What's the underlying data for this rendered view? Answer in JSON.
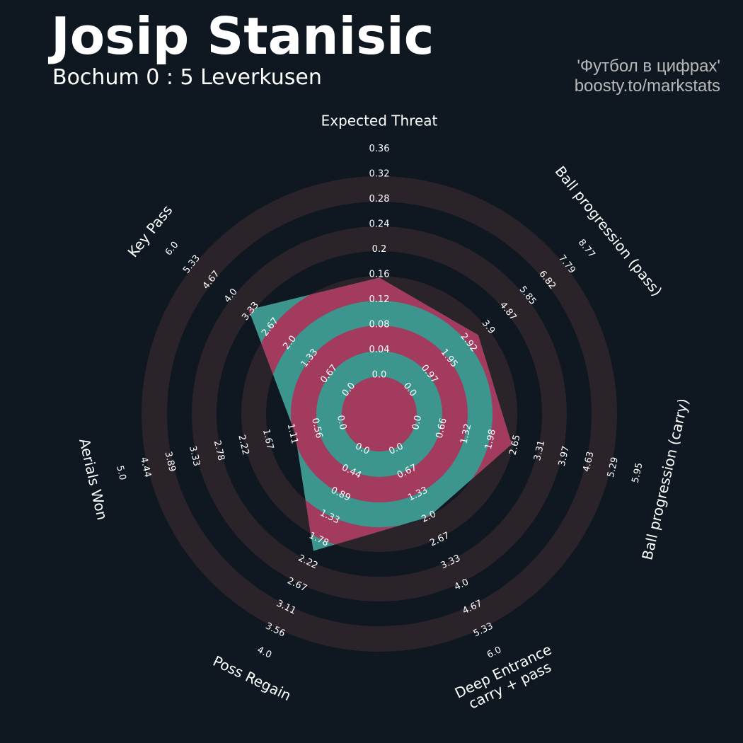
{
  "header": {
    "title": "Josip Stanisic",
    "subtitle": "Bochum 0 : 5 Leverkusen",
    "credit_line1": "'Футбол в цифрах'",
    "credit_line2": "boosty.to/markstats"
  },
  "colors": {
    "background": "#0f1820",
    "ring_band": "#2a2329",
    "player_area": "#a33b5e",
    "inner_area": "#3c968e",
    "text": "#ffffff",
    "credit_text": "#b8b8b8"
  },
  "chart_data": {
    "type": "radar",
    "title": "Josip Stanisic",
    "subtitle": "Bochum 0 : 5 Leverkusen",
    "axes": [
      {
        "name": "Expected Threat",
        "ticks": [
          "0.0",
          "0.04",
          "0.08",
          "0.12",
          "0.16",
          "0.2",
          "0.24",
          "0.28",
          "0.32",
          "0.36"
        ],
        "min": 0.0,
        "max": 0.36,
        "value": 0.155
      },
      {
        "name": "Ball progression (pass)",
        "ticks": [
          "0.0",
          "0.97",
          "1.95",
          "2.92",
          "3.9",
          "4.87",
          "5.85",
          "6.82",
          "7.79",
          "8.77"
        ],
        "min": 0.0,
        "max": 8.77,
        "value": 3.4
      },
      {
        "name": "Ball progression (carry)",
        "ticks": [
          "0.0",
          "0.66",
          "1.32",
          "1.98",
          "2.65",
          "3.31",
          "3.97",
          "4.63",
          "5.29",
          "5.95"
        ],
        "min": 0.0,
        "max": 5.95,
        "value": 2.55
      },
      {
        "name": "Deep Entrance\ncarry + pass",
        "ticks": [
          "0.0",
          "0.67",
          "1.33",
          "2.0",
          "2.67",
          "3.33",
          "4.0",
          "4.67",
          "5.33",
          "6.0"
        ],
        "min": 0.0,
        "max": 6.0,
        "value": 2.0
      },
      {
        "name": "Poss Regain",
        "ticks": [
          "0.0",
          "0.44",
          "0.89",
          "1.33",
          "1.78",
          "2.22",
          "2.67",
          "3.11",
          "3.56",
          "4.0"
        ],
        "min": 0.0,
        "max": 4.0,
        "value": 2.0
      },
      {
        "name": "Aerials Won",
        "ticks": [
          "0.0",
          "0.56",
          "1.11",
          "1.67",
          "2.22",
          "2.78",
          "3.33",
          "3.89",
          "4.44",
          "5.0"
        ],
        "min": 0.0,
        "max": 5.0,
        "value": 1.05
      },
      {
        "name": "Key Pass",
        "ticks": [
          "0.0",
          "0.67",
          "1.33",
          "2.0",
          "2.67",
          "3.33",
          "4.0",
          "4.67",
          "5.33",
          "6.0"
        ],
        "min": 0.0,
        "max": 6.0,
        "value": 3.4
      }
    ],
    "grid": true,
    "legend": "none"
  }
}
